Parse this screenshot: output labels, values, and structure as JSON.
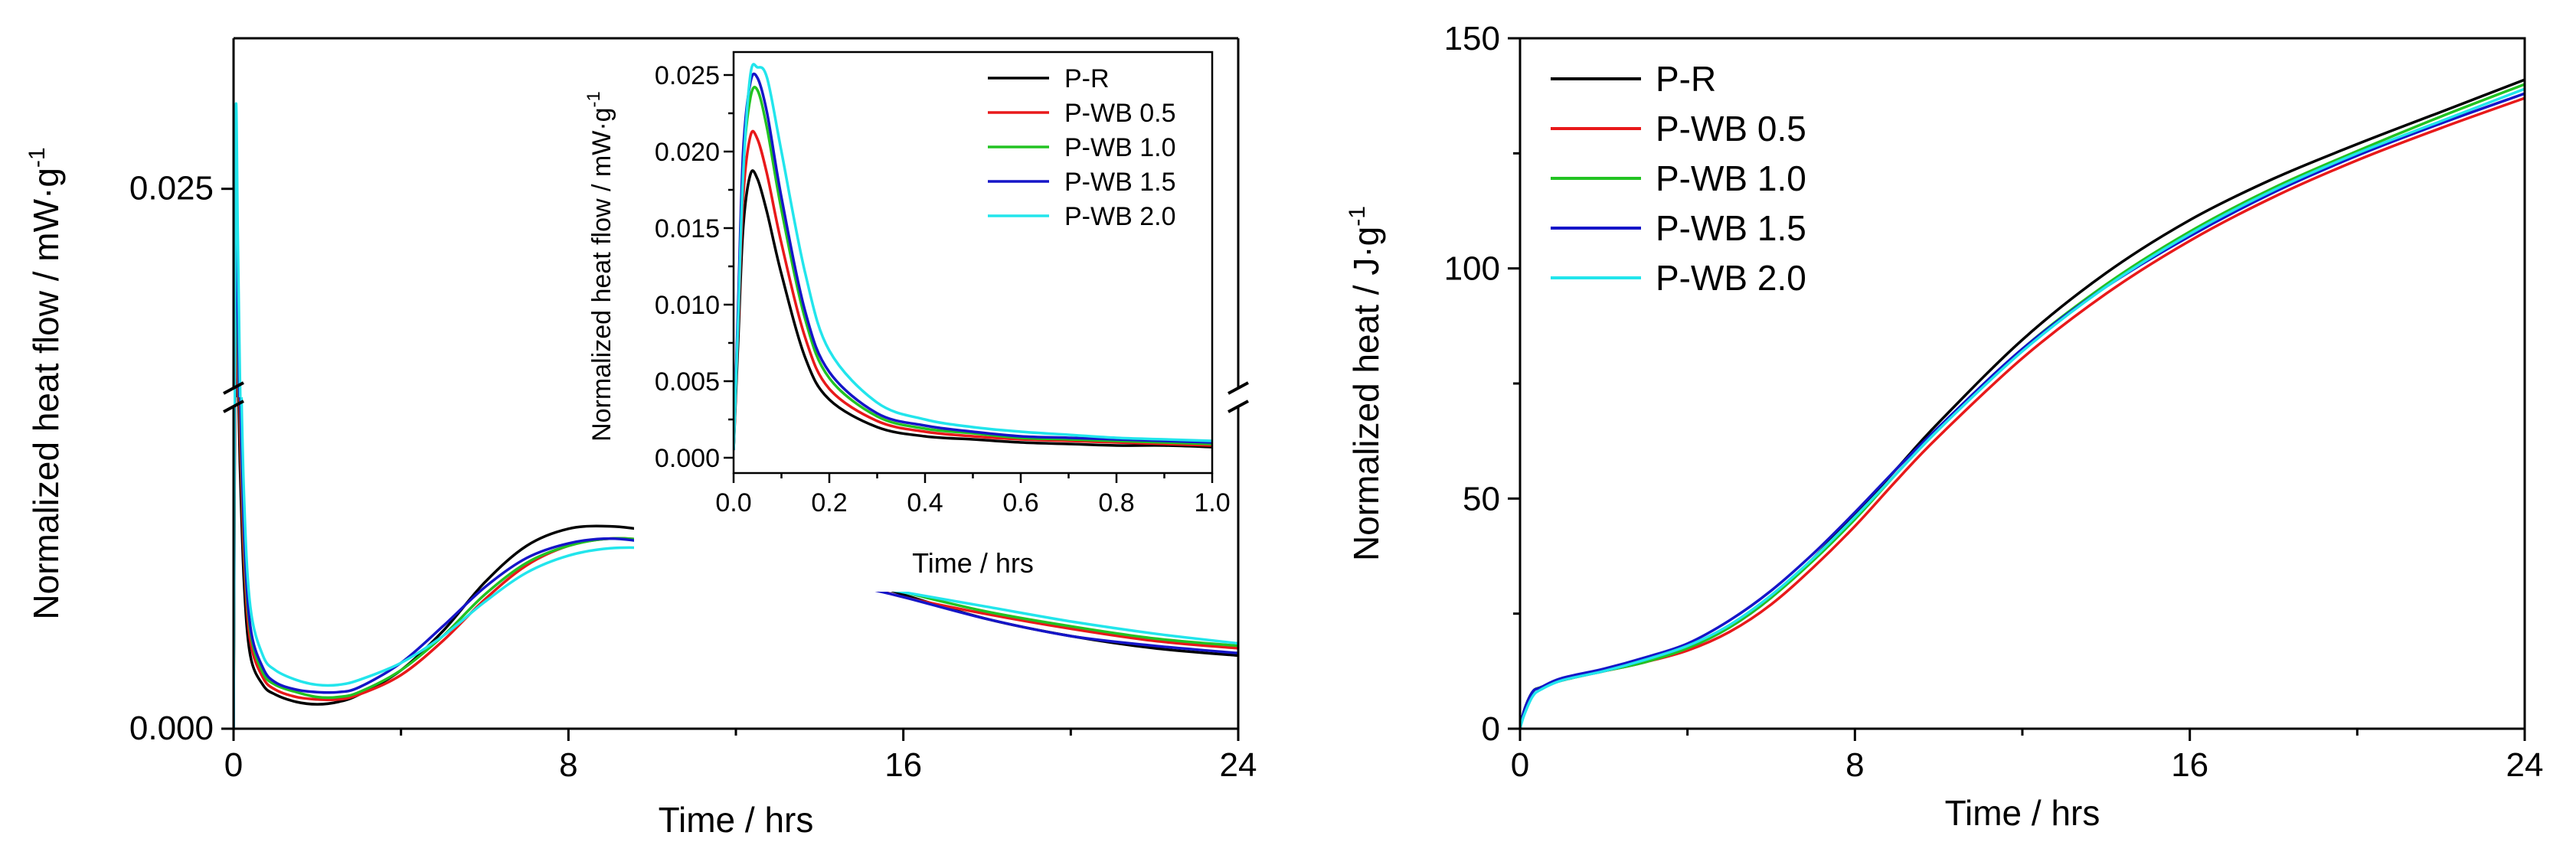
{
  "chart_data": [
    {
      "id": "left",
      "type": "line",
      "xlabel": "Time / hrs",
      "ylabel": "Normalized heat flow / mW·g",
      "ylabel_superscript": "-1",
      "xlim": [
        0,
        24
      ],
      "xticks": [
        0,
        8,
        16,
        24
      ],
      "xtick_labels": [
        "0",
        "8",
        "16",
        "24"
      ],
      "y_axis_broken": true,
      "ylim_lower": [
        0,
        0.0135
      ],
      "ylim_upper": [
        0.016,
        0.0315
      ],
      "yticks": [
        0.0,
        0.025
      ],
      "ytick_labels": [
        "0.000",
        "0.025"
      ],
      "series": [
        {
          "name": "P-R",
          "color": "#000000",
          "x": [
            0,
            0.05,
            0.1,
            0.15,
            0.25,
            0.4,
            0.7,
            1.0,
            1.5,
            2.0,
            2.5,
            3.0,
            4.0,
            5.0,
            6.0,
            7.0,
            8.0,
            9.0,
            10.0,
            11.0,
            12.0,
            13.0,
            14.0,
            15.0,
            16.0,
            18.0,
            20.0,
            22.0,
            24.0
          ],
          "y": [
            0,
            0.0185,
            0.015,
            0.011,
            0.006,
            0.003,
            0.0018,
            0.0014,
            0.0011,
            0.001,
            0.0011,
            0.0014,
            0.0024,
            0.004,
            0.006,
            0.0075,
            0.0082,
            0.0083,
            0.0081,
            0.0077,
            0.0073,
            0.007,
            0.0066,
            0.0061,
            0.0055,
            0.0045,
            0.0038,
            0.0033,
            0.003
          ]
        },
        {
          "name": "P-WB 0.5",
          "color": "#e8191a",
          "x": [
            0,
            0.05,
            0.1,
            0.15,
            0.25,
            0.4,
            0.7,
            1.0,
            1.5,
            2.0,
            2.5,
            3.0,
            4.0,
            5.0,
            6.0,
            7.0,
            8.0,
            9.0,
            10.0,
            11.0,
            12.0,
            13.0,
            14.0,
            15.0,
            16.0,
            18.0,
            20.0,
            22.0,
            24.0
          ],
          "y": [
            0,
            0.0212,
            0.017,
            0.0125,
            0.007,
            0.0036,
            0.0021,
            0.0016,
            0.0013,
            0.0012,
            0.0012,
            0.0014,
            0.0022,
            0.0036,
            0.0053,
            0.0067,
            0.0075,
            0.0078,
            0.0077,
            0.0074,
            0.007,
            0.0067,
            0.0064,
            0.0059,
            0.0054,
            0.0047,
            0.0041,
            0.0036,
            0.0033
          ]
        },
        {
          "name": "P-WB 1.0",
          "color": "#22c322",
          "x": [
            0,
            0.05,
            0.1,
            0.15,
            0.25,
            0.4,
            0.7,
            1.0,
            1.5,
            2.0,
            2.5,
            3.0,
            4.0,
            5.0,
            6.0,
            7.0,
            8.0,
            9.0,
            10.0,
            11.0,
            12.0,
            13.0,
            14.0,
            15.0,
            16.0,
            18.0,
            20.0,
            22.0,
            24.0
          ],
          "y": [
            0,
            0.024,
            0.019,
            0.014,
            0.0078,
            0.004,
            0.0023,
            0.0018,
            0.0015,
            0.0013,
            0.0013,
            0.0015,
            0.0024,
            0.0038,
            0.0055,
            0.0068,
            0.0075,
            0.0078,
            0.0077,
            0.0074,
            0.0071,
            0.0068,
            0.0065,
            0.006,
            0.0056,
            0.0048,
            0.0042,
            0.0037,
            0.0034
          ]
        },
        {
          "name": "P-WB 1.5",
          "color": "#1515c8",
          "x": [
            0,
            0.05,
            0.1,
            0.15,
            0.25,
            0.4,
            0.7,
            1.0,
            1.5,
            2.0,
            2.5,
            3.0,
            4.0,
            5.0,
            6.0,
            7.0,
            8.0,
            9.0,
            10.0,
            11.0,
            12.0,
            13.0,
            14.0,
            15.0,
            16.0,
            18.0,
            20.0,
            22.0,
            24.0
          ],
          "y": [
            0,
            0.025,
            0.02,
            0.0145,
            0.0082,
            0.0042,
            0.0025,
            0.0019,
            0.0016,
            0.0015,
            0.0015,
            0.0017,
            0.0027,
            0.0042,
            0.0058,
            0.007,
            0.0076,
            0.0078,
            0.0076,
            0.0072,
            0.0068,
            0.0065,
            0.0062,
            0.0058,
            0.0054,
            0.0045,
            0.0038,
            0.0034,
            0.0031
          ]
        },
        {
          "name": "P-WB 2.0",
          "color": "#22e5ec",
          "x": [
            0,
            0.05,
            0.1,
            0.15,
            0.25,
            0.4,
            0.7,
            1.0,
            1.5,
            2.0,
            2.5,
            3.0,
            4.0,
            5.0,
            6.0,
            7.0,
            8.0,
            9.0,
            10.0,
            11.0,
            12.0,
            13.0,
            14.0,
            15.0,
            16.0,
            18.0,
            20.0,
            22.0,
            24.0
          ],
          "y": [
            0,
            0.0275,
            0.023,
            0.017,
            0.0095,
            0.005,
            0.003,
            0.0024,
            0.002,
            0.0018,
            0.0018,
            0.002,
            0.0027,
            0.0038,
            0.0052,
            0.0064,
            0.0071,
            0.0074,
            0.0074,
            0.0072,
            0.0069,
            0.0066,
            0.0063,
            0.0059,
            0.0056,
            0.005,
            0.0044,
            0.0039,
            0.0035
          ]
        }
      ]
    },
    {
      "id": "inset",
      "type": "line",
      "xlabel": "Time / hrs",
      "ylabel": "Normalized heat flow / mW·g",
      "ylabel_superscript": "-1",
      "xlim": [
        0,
        1.0
      ],
      "ylim": [
        -0.001,
        0.0265
      ],
      "xticks": [
        0,
        0.2,
        0.4,
        0.6,
        0.8,
        1.0
      ],
      "xtick_labels": [
        "0.0",
        "0.2",
        "0.4",
        "0.6",
        "0.8",
        "1.0"
      ],
      "yticks": [
        0,
        0.005,
        0.01,
        0.015,
        0.02,
        0.025
      ],
      "ytick_labels": [
        "0.000",
        "0.005",
        "0.010",
        "0.015",
        "0.020",
        "0.025"
      ],
      "legend_position": "top-right",
      "legend": [
        "P-R",
        "P-WB 0.5",
        "P-WB 1.0",
        "P-WB 1.5",
        "P-WB 2.0"
      ],
      "series": [
        {
          "name": "P-R",
          "color": "#000000",
          "x": [
            0,
            0.01,
            0.02,
            0.035,
            0.05,
            0.07,
            0.1,
            0.15,
            0.2,
            0.3,
            0.4,
            0.5,
            0.6,
            0.7,
            0.8,
            0.9,
            1.0
          ],
          "y": [
            0.0005,
            0.008,
            0.015,
            0.0185,
            0.0182,
            0.016,
            0.012,
            0.0065,
            0.0038,
            0.002,
            0.0014,
            0.0012,
            0.001,
            0.0009,
            0.0008,
            0.0008,
            0.0007
          ]
        },
        {
          "name": "P-WB 0.5",
          "color": "#e8191a",
          "x": [
            0,
            0.01,
            0.02,
            0.035,
            0.05,
            0.07,
            0.1,
            0.15,
            0.2,
            0.3,
            0.4,
            0.5,
            0.6,
            0.7,
            0.8,
            0.9,
            1.0
          ],
          "y": [
            0.0005,
            0.009,
            0.017,
            0.021,
            0.0208,
            0.0185,
            0.014,
            0.0078,
            0.0045,
            0.0024,
            0.0017,
            0.0014,
            0.0012,
            0.0011,
            0.001,
            0.0009,
            0.0008
          ]
        },
        {
          "name": "P-WB 1.0",
          "color": "#22c322",
          "x": [
            0,
            0.01,
            0.02,
            0.035,
            0.05,
            0.07,
            0.1,
            0.15,
            0.2,
            0.3,
            0.4,
            0.5,
            0.6,
            0.7,
            0.8,
            0.9,
            1.0
          ],
          "y": [
            0.0005,
            0.01,
            0.019,
            0.0235,
            0.024,
            0.0215,
            0.0162,
            0.009,
            0.0052,
            0.0027,
            0.0019,
            0.0016,
            0.0013,
            0.0012,
            0.0011,
            0.001,
            0.0009
          ]
        },
        {
          "name": "P-WB 1.5",
          "color": "#1515c8",
          "x": [
            0,
            0.01,
            0.02,
            0.035,
            0.05,
            0.07,
            0.1,
            0.15,
            0.2,
            0.3,
            0.4,
            0.5,
            0.6,
            0.7,
            0.8,
            0.9,
            1.0
          ],
          "y": [
            0.0005,
            0.0105,
            0.02,
            0.0245,
            0.0248,
            0.0225,
            0.017,
            0.0095,
            0.0056,
            0.0029,
            0.0021,
            0.0017,
            0.0014,
            0.0013,
            0.0012,
            0.0011,
            0.001
          ]
        },
        {
          "name": "P-WB 2.0",
          "color": "#22e5ec",
          "x": [
            0,
            0.01,
            0.02,
            0.035,
            0.05,
            0.07,
            0.1,
            0.15,
            0.2,
            0.3,
            0.4,
            0.5,
            0.6,
            0.7,
            0.8,
            0.9,
            1.0
          ],
          "y": [
            0.0005,
            0.0095,
            0.0185,
            0.025,
            0.0255,
            0.0248,
            0.02,
            0.012,
            0.007,
            0.0036,
            0.0025,
            0.002,
            0.0017,
            0.0015,
            0.0013,
            0.0012,
            0.0011
          ]
        }
      ]
    },
    {
      "id": "right",
      "type": "line",
      "xlabel": "Time / hrs",
      "ylabel": "Normalized heat / J·g",
      "ylabel_superscript": "-1",
      "xlim": [
        0,
        24
      ],
      "ylim": [
        0,
        150
      ],
      "xticks": [
        0,
        8,
        16,
        24
      ],
      "xtick_labels": [
        "0",
        "8",
        "16",
        "24"
      ],
      "yticks": [
        0,
        50,
        100,
        150
      ],
      "ytick_labels": [
        "0",
        "50",
        "100",
        "150"
      ],
      "legend_position": "top-left",
      "legend": [
        "P-R",
        "P-WB 0.5",
        "P-WB 1.0",
        "P-WB 1.5",
        "P-WB 2.0"
      ],
      "series": [
        {
          "name": "P-R",
          "color": "#000000",
          "x": [
            0,
            0.1,
            0.3,
            0.5,
            1,
            2,
            3,
            4,
            5,
            6,
            7,
            8,
            9,
            10,
            12,
            14,
            16,
            18,
            20,
            22,
            24
          ],
          "y": [
            0,
            4,
            8,
            9,
            10.5,
            12.5,
            14.5,
            17.5,
            22,
            28.5,
            37,
            46.5,
            56.5,
            66.5,
            84.5,
            99,
            110.5,
            119.5,
            127,
            134,
            141
          ]
        },
        {
          "name": "P-WB 0.5",
          "color": "#e8191a",
          "x": [
            0,
            0.1,
            0.3,
            0.5,
            1,
            2,
            3,
            4,
            5,
            6,
            7,
            8,
            9,
            10,
            12,
            14,
            16,
            18,
            20,
            22,
            24
          ],
          "y": [
            0,
            4,
            8,
            9,
            10.5,
            12.5,
            14.5,
            17,
            21,
            27,
            35,
            44,
            54,
            63.5,
            80.5,
            94.5,
            106,
            115.5,
            123.5,
            130.5,
            137
          ]
        },
        {
          "name": "P-WB 1.0",
          "color": "#22c322",
          "x": [
            0,
            0.1,
            0.3,
            0.5,
            1,
            2,
            3,
            4,
            5,
            6,
            7,
            8,
            9,
            10,
            12,
            14,
            16,
            18,
            20,
            22,
            24
          ],
          "y": [
            0,
            4,
            8,
            9,
            10.5,
            12.5,
            14.5,
            17.5,
            22,
            28.5,
            36.5,
            45.5,
            55.5,
            65,
            82.5,
            96.5,
            108,
            117.5,
            125.5,
            133,
            140
          ]
        },
        {
          "name": "P-WB 1.5",
          "color": "#1515c8",
          "x": [
            0,
            0.1,
            0.3,
            0.5,
            1,
            2,
            3,
            4,
            5,
            6,
            7,
            8,
            9,
            10,
            12,
            14,
            16,
            18,
            20,
            22,
            24
          ],
          "y": [
            0,
            4,
            8,
            9,
            11,
            13,
            15.5,
            18.5,
            23.5,
            30,
            38,
            47,
            56.5,
            65.5,
            82.5,
            96,
            107,
            116.5,
            124.5,
            131.5,
            138
          ]
        },
        {
          "name": "P-WB 2.0",
          "color": "#22e5ec",
          "x": [
            0,
            0.1,
            0.3,
            0.5,
            1,
            2,
            3,
            4,
            5,
            6,
            7,
            8,
            9,
            10,
            12,
            14,
            16,
            18,
            20,
            22,
            24
          ],
          "y": [
            0,
            3,
            7,
            8.5,
            10.5,
            12.5,
            15,
            18,
            22.5,
            29,
            37,
            46,
            55.5,
            65,
            82,
            96,
            107.5,
            117,
            125,
            132,
            139
          ]
        }
      ]
    }
  ]
}
